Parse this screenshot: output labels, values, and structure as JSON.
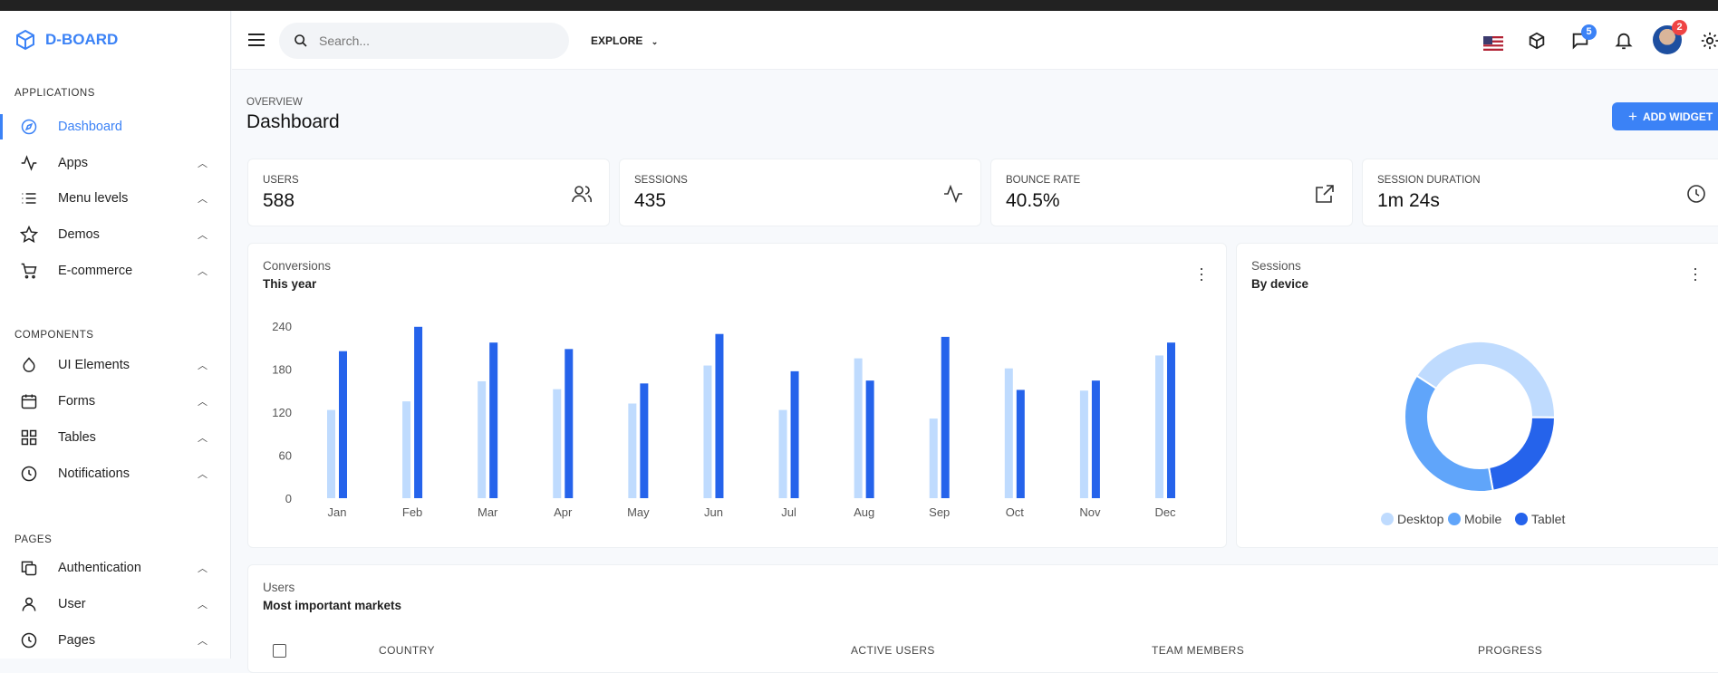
{
  "brand": {
    "name": "D-BOARD"
  },
  "sidebar": {
    "sections": [
      "APPLICATIONS",
      "COMPONENTS",
      "PAGES"
    ],
    "items": [
      {
        "label": "Dashboard",
        "icon": "compass-icon",
        "active": true
      },
      {
        "label": "Apps",
        "icon": "activity-icon"
      },
      {
        "label": "Menu levels",
        "icon": "list-icon"
      },
      {
        "label": "Demos",
        "icon": "star-icon"
      },
      {
        "label": "E-commerce",
        "icon": "cart-icon"
      },
      {
        "label": "UI Elements",
        "icon": "droplet-icon"
      },
      {
        "label": "Forms",
        "icon": "calendar-icon"
      },
      {
        "label": "Tables",
        "icon": "grid-icon"
      },
      {
        "label": "Notifications",
        "icon": "clock-icon"
      },
      {
        "label": "Authentication",
        "icon": "copy-icon"
      },
      {
        "label": "User",
        "icon": "user-icon"
      },
      {
        "label": "Pages",
        "icon": "clock-icon"
      }
    ]
  },
  "topbar": {
    "search_placeholder": "Search...",
    "explore": "EXPLORE",
    "messages_badge": "5",
    "avatar_badge": "2"
  },
  "header": {
    "overline": "OVERVIEW",
    "title": "Dashboard",
    "add_widget": "ADD WIDGET"
  },
  "stats": [
    {
      "label": "USERS",
      "value": "588",
      "icon": "users-icon"
    },
    {
      "label": "SESSIONS",
      "value": "435",
      "icon": "activity-icon"
    },
    {
      "label": "BOUNCE RATE",
      "value": "40.5%",
      "icon": "external-link-icon"
    },
    {
      "label": "SESSION DURATION",
      "value": "1m 24s",
      "icon": "clock-icon"
    }
  ],
  "conversions": {
    "title": "Conversions",
    "subtitle": "This year"
  },
  "sessions": {
    "title": "Sessions",
    "subtitle": "By device"
  },
  "users": {
    "title": "Users",
    "subtitle": "Most important markets",
    "columns": [
      "COUNTRY",
      "ACTIVE USERS",
      "TEAM MEMBERS",
      "PROGRESS"
    ]
  },
  "chart_data": [
    {
      "type": "bar",
      "categories": [
        "Jan",
        "Feb",
        "Mar",
        "Apr",
        "May",
        "Jun",
        "Jul",
        "Aug",
        "Sep",
        "Oct",
        "Nov",
        "Dec"
      ],
      "series": [
        {
          "values": [
            123,
            135,
            163,
            152,
            132,
            185,
            123,
            195,
            111,
            181,
            150,
            199
          ],
          "color": "#bfdbfe"
        },
        {
          "values": [
            205,
            239,
            217,
            208,
            160,
            229,
            177,
            164,
            225,
            151,
            164,
            217
          ],
          "color": "#2563eb"
        }
      ],
      "yticks": [
        0,
        60,
        120,
        180,
        240
      ],
      "ylim": [
        0,
        240
      ]
    },
    {
      "type": "pie",
      "donut": true,
      "labels": [
        "Desktop",
        "Mobile",
        "Tablet"
      ],
      "values": [
        41,
        37,
        22
      ],
      "colors": [
        "#bfdbfe",
        "#60a5fa",
        "#2563eb"
      ],
      "legend": "bottom"
    }
  ]
}
